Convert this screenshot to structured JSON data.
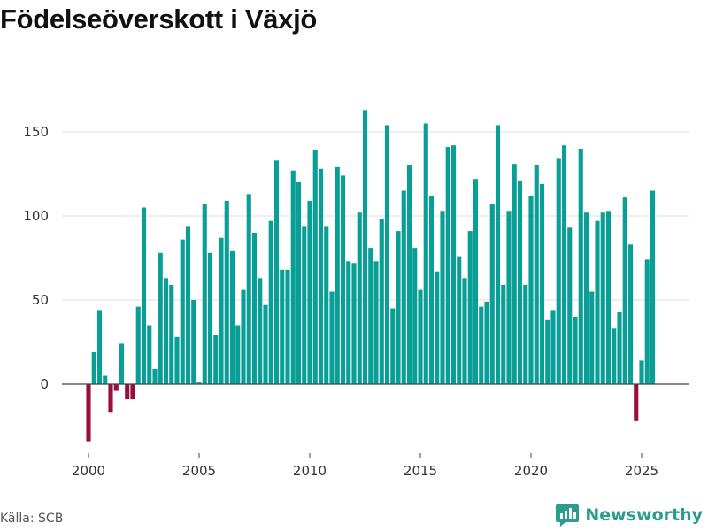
{
  "colors": {
    "positive": "#0a9f96",
    "negative": "#970e3f",
    "grid": "#dddddd",
    "axis": "#444444",
    "brand": "#2a9d8f"
  },
  "chart_data": {
    "type": "bar",
    "title": "Födelseöverskott i Växjö",
    "xlabel": "",
    "ylabel": "",
    "ylim": [
      -35,
      165
    ],
    "xlim": [
      1999,
      2027
    ],
    "yticks": [
      0,
      50,
      100,
      150
    ],
    "xticks": [
      2000,
      2005,
      2010,
      2015,
      2020,
      2025
    ],
    "series": [
      {
        "name": "Födelseöverskott",
        "values": [
          -34,
          19,
          44,
          5,
          -17,
          -4,
          24,
          -9,
          -9,
          46,
          105,
          35,
          9,
          78,
          63,
          59,
          28,
          86,
          94,
          50,
          1,
          107,
          78,
          29,
          87,
          109,
          79,
          35,
          56,
          113,
          90,
          63,
          47,
          97,
          133,
          68,
          68,
          127,
          120,
          94,
          109,
          139,
          128,
          94,
          55,
          129,
          124,
          73,
          72,
          102,
          163,
          81,
          73,
          98,
          154,
          45,
          91,
          115,
          130,
          81,
          56,
          155,
          112,
          67,
          103,
          141,
          142,
          76,
          63,
          91,
          122,
          46,
          49,
          107,
          154,
          59,
          103,
          131,
          121,
          59,
          112,
          130,
          119,
          38,
          44,
          134,
          142,
          93,
          40,
          140,
          102,
          55,
          97,
          102,
          103,
          33,
          43,
          111,
          83,
          -22,
          14,
          74,
          115
        ]
      }
    ]
  },
  "footer": {
    "source": "Källa: SCB",
    "brand": "Newsworthy"
  }
}
